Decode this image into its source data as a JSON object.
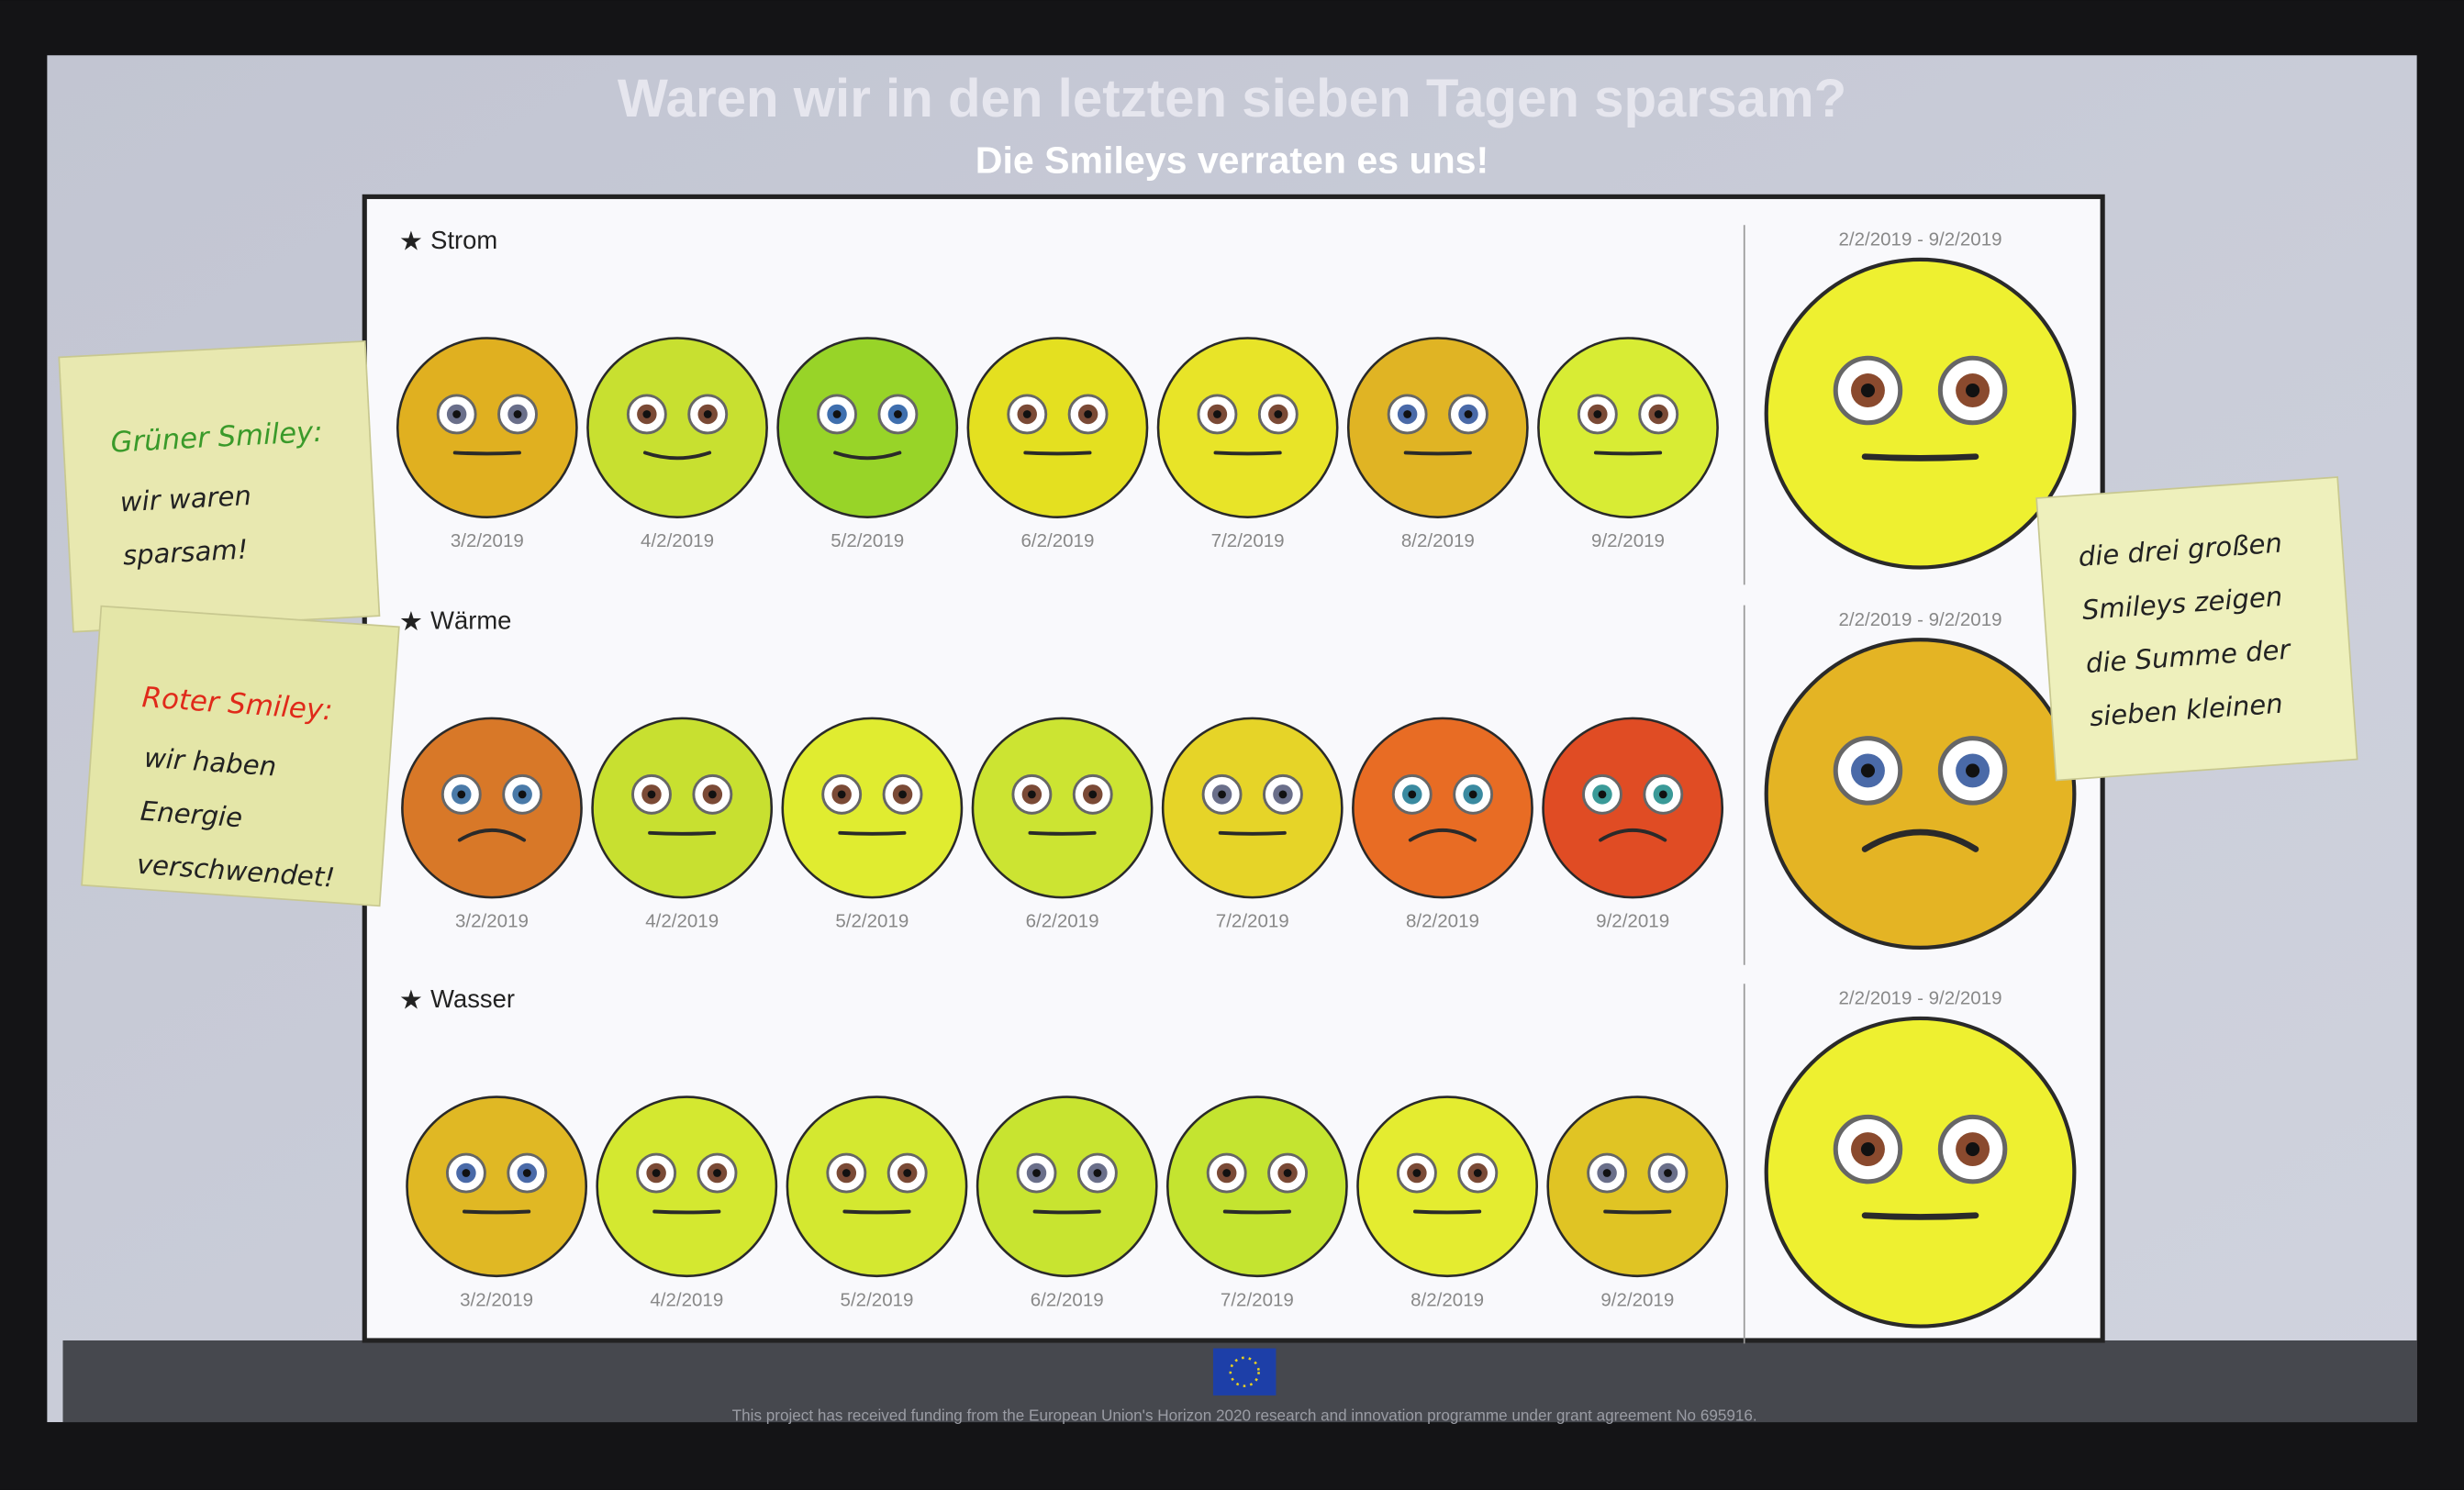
{
  "header": {
    "title": "Waren wir in den letzten sieben Tagen sparsam?",
    "subtitle": "Die Smileys verraten es uns!"
  },
  "rows": [
    {
      "label": "Strom",
      "range": "2/2/2019 - 9/2/2019",
      "total": {
        "color": "#eef030",
        "eyes": "#8a4a2e",
        "mouth": "flat"
      },
      "days": [
        {
          "date": "3/2/2019",
          "color": "#e0b020",
          "eyes": "#6a6f8a",
          "mouth": "flat"
        },
        {
          "date": "4/2/2019",
          "color": "#c8e030",
          "eyes": "#7a4a36",
          "mouth": "smile"
        },
        {
          "date": "5/2/2019",
          "color": "#98d428",
          "eyes": "#3f6fae",
          "mouth": "smile"
        },
        {
          "date": "6/2/2019",
          "color": "#e4e020",
          "eyes": "#7a4a36",
          "mouth": "flat"
        },
        {
          "date": "7/2/2019",
          "color": "#e8e428",
          "eyes": "#7a4a36",
          "mouth": "flat"
        },
        {
          "date": "8/2/2019",
          "color": "#e0b424",
          "eyes": "#4a6aa8",
          "mouth": "flat"
        },
        {
          "date": "9/2/2019",
          "color": "#d8ec34",
          "eyes": "#7a4a36",
          "mouth": "flat"
        }
      ]
    },
    {
      "label": "Wärme",
      "range": "2/2/2019 - 9/2/2019",
      "total": {
        "color": "#e4b424",
        "eyes": "#4a6aa8",
        "mouth": "frown"
      },
      "days": [
        {
          "date": "3/2/2019",
          "color": "#d87828",
          "eyes": "#4a7aa8",
          "mouth": "frown"
        },
        {
          "date": "4/2/2019",
          "color": "#c8e030",
          "eyes": "#7a4a36",
          "mouth": "flat"
        },
        {
          "date": "5/2/2019",
          "color": "#e0ec30",
          "eyes": "#7a4a36",
          "mouth": "flat"
        },
        {
          "date": "6/2/2019",
          "color": "#cce432",
          "eyes": "#7a4a36",
          "mouth": "flat"
        },
        {
          "date": "7/2/2019",
          "color": "#e6d428",
          "eyes": "#6a6f8a",
          "mouth": "flat"
        },
        {
          "date": "8/2/2019",
          "color": "#e86c24",
          "eyes": "#3a8aa0",
          "mouth": "frown"
        },
        {
          "date": "9/2/2019",
          "color": "#e04c24",
          "eyes": "#3a9a98",
          "mouth": "frown"
        }
      ]
    },
    {
      "label": "Wasser",
      "range": "2/2/2019 - 9/2/2019",
      "total": {
        "color": "#eef030",
        "eyes": "#8a4a2e",
        "mouth": "flat"
      },
      "days": [
        {
          "date": "3/2/2019",
          "color": "#e0b824",
          "eyes": "#4a6aa8",
          "mouth": "flat"
        },
        {
          "date": "4/2/2019",
          "color": "#d4e830",
          "eyes": "#7a4a36",
          "mouth": "flat"
        },
        {
          "date": "5/2/2019",
          "color": "#d4e830",
          "eyes": "#7a4a36",
          "mouth": "flat"
        },
        {
          "date": "6/2/2019",
          "color": "#c8e430",
          "eyes": "#6a6f8a",
          "mouth": "flat"
        },
        {
          "date": "7/2/2019",
          "color": "#c4e430",
          "eyes": "#7a4a36",
          "mouth": "flat"
        },
        {
          "date": "8/2/2019",
          "color": "#e4ec30",
          "eyes": "#7a4a36",
          "mouth": "flat"
        },
        {
          "date": "9/2/2019",
          "color": "#e0c424",
          "eyes": "#6a6f8a",
          "mouth": "flat"
        }
      ]
    }
  ],
  "notes": [
    {
      "heading": "Grüner Smiley:",
      "color": "#3a9a2a",
      "lines": [
        "wir waren",
        "sparsam!"
      ]
    },
    {
      "heading": "Roter Smiley:",
      "color": "#e02a1a",
      "lines": [
        "wir haben",
        "Energie",
        "verschwendet!"
      ]
    },
    {
      "lines": [
        "die drei großen",
        "Smileys zeigen",
        "die Summe der",
        "sieben kleinen"
      ]
    }
  ],
  "footer": {
    "funding": "This project has received funding from the European Union's Horizon 2020 research and innovation programme under grant agreement No 695916."
  }
}
